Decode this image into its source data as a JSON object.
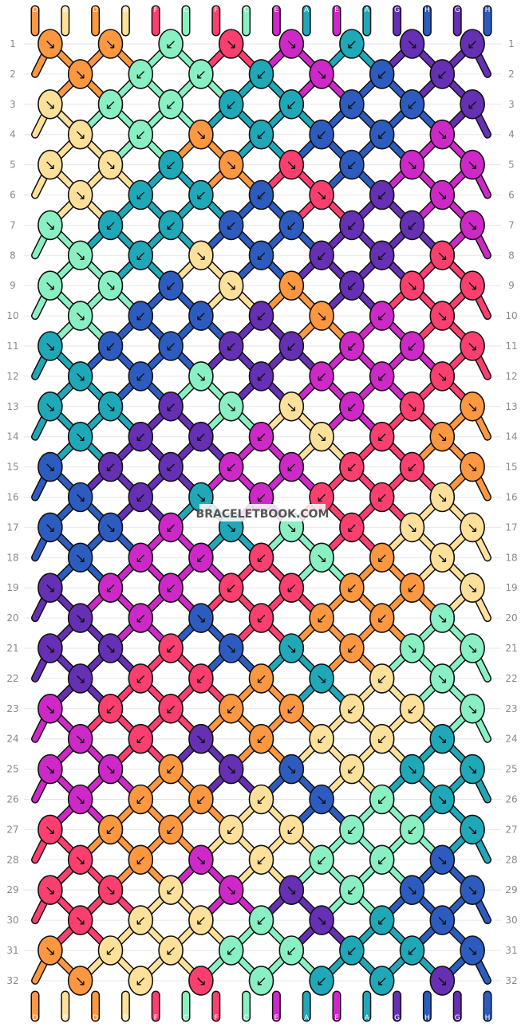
{
  "site": {
    "watermark": "BRACELETBOOK.COM"
  },
  "colors": {
    "D": "#fd9740",
    "B": "#fde099",
    "F": "#fc3f6e",
    "C": "#89f0c3",
    "E": "#cf28c8",
    "A": "#1fa8b8",
    "G": "#6530b3",
    "H": "#2d5cc0"
  },
  "pattern": {
    "rows": 32,
    "strands": [
      "D",
      "B",
      "D",
      "B",
      "F",
      "C",
      "F",
      "C",
      "E",
      "A",
      "E",
      "A",
      "G",
      "H",
      "G",
      "H"
    ]
  },
  "knots": [
    [
      {
        "c": "D",
        "d": "↘"
      },
      {
        "c": "D",
        "d": "↘"
      },
      {
        "c": "C",
        "d": "↙"
      },
      {
        "c": "F",
        "d": "↘"
      },
      {
        "c": "E",
        "d": "↘"
      },
      {
        "c": "A",
        "d": "↙"
      },
      {
        "c": "G",
        "d": "↘"
      },
      {
        "c": "G",
        "d": "↙"
      }
    ],
    [
      {
        "c": "D",
        "d": "↘"
      },
      {
        "c": "C",
        "d": "↙"
      },
      {
        "c": "C",
        "d": "↙"
      },
      {
        "c": "A",
        "d": "↙"
      },
      {
        "c": "E",
        "d": "↘"
      },
      {
        "c": "H",
        "d": "↙"
      },
      {
        "c": "G",
        "d": "↙"
      }
    ],
    [
      {
        "c": "B",
        "d": "↘"
      },
      {
        "c": "C",
        "d": "↙"
      },
      {
        "c": "C",
        "d": "↙"
      },
      {
        "c": "A",
        "d": "↙"
      },
      {
        "c": "A",
        "d": "↙"
      },
      {
        "c": "H",
        "d": "↙"
      },
      {
        "c": "H",
        "d": "↙"
      },
      {
        "c": "G",
        "d": "↙"
      }
    ],
    [
      {
        "c": "B",
        "d": "↘"
      },
      {
        "c": "C",
        "d": "↙"
      },
      {
        "c": "D",
        "d": "↘"
      },
      {
        "c": "A",
        "d": "↙"
      },
      {
        "c": "H",
        "d": "↙"
      },
      {
        "c": "H",
        "d": "↙"
      },
      {
        "c": "E",
        "d": "↘"
      }
    ],
    [
      {
        "c": "B",
        "d": "↘"
      },
      {
        "c": "B",
        "d": "↘"
      },
      {
        "c": "A",
        "d": "↙"
      },
      {
        "c": "D",
        "d": "↘"
      },
      {
        "c": "F",
        "d": "↘"
      },
      {
        "c": "H",
        "d": "↙"
      },
      {
        "c": "E",
        "d": "↘"
      },
      {
        "c": "E",
        "d": "↘"
      }
    ],
    [
      {
        "c": "B",
        "d": "↘"
      },
      {
        "c": "A",
        "d": "↙"
      },
      {
        "c": "A",
        "d": "↙"
      },
      {
        "c": "H",
        "d": "↙"
      },
      {
        "c": "F",
        "d": "↘"
      },
      {
        "c": "G",
        "d": "↙"
      },
      {
        "c": "E",
        "d": "↘"
      }
    ],
    [
      {
        "c": "C",
        "d": "↘"
      },
      {
        "c": "A",
        "d": "↙"
      },
      {
        "c": "A",
        "d": "↙"
      },
      {
        "c": "H",
        "d": "↙"
      },
      {
        "c": "H",
        "d": "↙"
      },
      {
        "c": "G",
        "d": "↙"
      },
      {
        "c": "G",
        "d": "↙"
      },
      {
        "c": "E",
        "d": "↘"
      }
    ],
    [
      {
        "c": "C",
        "d": "↘"
      },
      {
        "c": "A",
        "d": "↙"
      },
      {
        "c": "B",
        "d": "↘"
      },
      {
        "c": "H",
        "d": "↙"
      },
      {
        "c": "G",
        "d": "↙"
      },
      {
        "c": "G",
        "d": "↙"
      },
      {
        "c": "F",
        "d": "↘"
      }
    ],
    [
      {
        "c": "C",
        "d": "↘"
      },
      {
        "c": "C",
        "d": "↘"
      },
      {
        "c": "H",
        "d": "↙"
      },
      {
        "c": "B",
        "d": "↘"
      },
      {
        "c": "D",
        "d": "↘"
      },
      {
        "c": "G",
        "d": "↙"
      },
      {
        "c": "F",
        "d": "↘"
      },
      {
        "c": "F",
        "d": "↘"
      }
    ],
    [
      {
        "c": "C",
        "d": "↘"
      },
      {
        "c": "H",
        "d": "↙"
      },
      {
        "c": "H",
        "d": "↙"
      },
      {
        "c": "G",
        "d": "↙"
      },
      {
        "c": "D",
        "d": "↘"
      },
      {
        "c": "E",
        "d": "↙"
      },
      {
        "c": "F",
        "d": "↘"
      }
    ],
    [
      {
        "c": "A",
        "d": "↘"
      },
      {
        "c": "H",
        "d": "↙"
      },
      {
        "c": "H",
        "d": "↙"
      },
      {
        "c": "G",
        "d": "↙"
      },
      {
        "c": "G",
        "d": "↙"
      },
      {
        "c": "E",
        "d": "↙"
      },
      {
        "c": "E",
        "d": "↙"
      },
      {
        "c": "F",
        "d": "↘"
      }
    ],
    [
      {
        "c": "A",
        "d": "↘"
      },
      {
        "c": "H",
        "d": "↙"
      },
      {
        "c": "C",
        "d": "↘"
      },
      {
        "c": "G",
        "d": "↙"
      },
      {
        "c": "E",
        "d": "↙"
      },
      {
        "c": "E",
        "d": "↙"
      },
      {
        "c": "F",
        "d": "↘"
      }
    ],
    [
      {
        "c": "A",
        "d": "↘"
      },
      {
        "c": "A",
        "d": "↘"
      },
      {
        "c": "G",
        "d": "↙"
      },
      {
        "c": "C",
        "d": "↘"
      },
      {
        "c": "B",
        "d": "↘"
      },
      {
        "c": "E",
        "d": "↙"
      },
      {
        "c": "F",
        "d": "↘"
      },
      {
        "c": "D",
        "d": "↘"
      }
    ],
    [
      {
        "c": "A",
        "d": "↘"
      },
      {
        "c": "G",
        "d": "↙"
      },
      {
        "c": "G",
        "d": "↙"
      },
      {
        "c": "E",
        "d": "↙"
      },
      {
        "c": "B",
        "d": "↘"
      },
      {
        "c": "F",
        "d": "↙"
      },
      {
        "c": "D",
        "d": "↘"
      }
    ],
    [
      {
        "c": "H",
        "d": "↘"
      },
      {
        "c": "G",
        "d": "↙"
      },
      {
        "c": "G",
        "d": "↙"
      },
      {
        "c": "E",
        "d": "↙"
      },
      {
        "c": "E",
        "d": "↙"
      },
      {
        "c": "F",
        "d": "↙"
      },
      {
        "c": "F",
        "d": "↙"
      },
      {
        "c": "D",
        "d": "↘"
      }
    ],
    [
      {
        "c": "H",
        "d": "↘"
      },
      {
        "c": "G",
        "d": "↙"
      },
      {
        "c": "A",
        "d": "↘"
      },
      {
        "c": "E",
        "d": "↙"
      },
      {
        "c": "F",
        "d": "↙"
      },
      {
        "c": "F",
        "d": "↙"
      },
      {
        "c": "B",
        "d": "↘"
      }
    ],
    [
      {
        "c": "H",
        "d": "↘"
      },
      {
        "c": "H",
        "d": "↘"
      },
      {
        "c": "E",
        "d": "↙"
      },
      {
        "c": "A",
        "d": "↘"
      },
      {
        "c": "C",
        "d": "↘"
      },
      {
        "c": "F",
        "d": "↙"
      },
      {
        "c": "B",
        "d": "↘"
      },
      {
        "c": "B",
        "d": "↘"
      }
    ],
    [
      {
        "c": "H",
        "d": "↘"
      },
      {
        "c": "E",
        "d": "↙"
      },
      {
        "c": "E",
        "d": "↙"
      },
      {
        "c": "F",
        "d": "↙"
      },
      {
        "c": "C",
        "d": "↘"
      },
      {
        "c": "D",
        "d": "↙"
      },
      {
        "c": "B",
        "d": "↘"
      }
    ],
    [
      {
        "c": "G",
        "d": "↘"
      },
      {
        "c": "E",
        "d": "↙"
      },
      {
        "c": "E",
        "d": "↙"
      },
      {
        "c": "F",
        "d": "↙"
      },
      {
        "c": "F",
        "d": "↙"
      },
      {
        "c": "D",
        "d": "↙"
      },
      {
        "c": "D",
        "d": "↙"
      },
      {
        "c": "B",
        "d": "↘"
      }
    ],
    [
      {
        "c": "G",
        "d": "↘"
      },
      {
        "c": "E",
        "d": "↙"
      },
      {
        "c": "H",
        "d": "↘"
      },
      {
        "c": "F",
        "d": "↙"
      },
      {
        "c": "D",
        "d": "↙"
      },
      {
        "c": "D",
        "d": "↙"
      },
      {
        "c": "C",
        "d": "↘"
      }
    ],
    [
      {
        "c": "G",
        "d": "↘"
      },
      {
        "c": "G",
        "d": "↘"
      },
      {
        "c": "F",
        "d": "↙"
      },
      {
        "c": "H",
        "d": "↘"
      },
      {
        "c": "A",
        "d": "↘"
      },
      {
        "c": "D",
        "d": "↙"
      },
      {
        "c": "C",
        "d": "↘"
      },
      {
        "c": "C",
        "d": "↘"
      }
    ],
    [
      {
        "c": "G",
        "d": "↘"
      },
      {
        "c": "F",
        "d": "↙"
      },
      {
        "c": "F",
        "d": "↙"
      },
      {
        "c": "D",
        "d": "↙"
      },
      {
        "c": "A",
        "d": "↘"
      },
      {
        "c": "B",
        "d": "↙"
      },
      {
        "c": "C",
        "d": "↘"
      }
    ],
    [
      {
        "c": "E",
        "d": "↘"
      },
      {
        "c": "F",
        "d": "↙"
      },
      {
        "c": "F",
        "d": "↙"
      },
      {
        "c": "D",
        "d": "↙"
      },
      {
        "c": "D",
        "d": "↙"
      },
      {
        "c": "B",
        "d": "↙"
      },
      {
        "c": "B",
        "d": "↙"
      },
      {
        "c": "C",
        "d": "↘"
      }
    ],
    [
      {
        "c": "E",
        "d": "↘"
      },
      {
        "c": "F",
        "d": "↙"
      },
      {
        "c": "G",
        "d": "↘"
      },
      {
        "c": "D",
        "d": "↙"
      },
      {
        "c": "B",
        "d": "↙"
      },
      {
        "c": "B",
        "d": "↙"
      },
      {
        "c": "A",
        "d": "↘"
      }
    ],
    [
      {
        "c": "E",
        "d": "↘"
      },
      {
        "c": "E",
        "d": "↘"
      },
      {
        "c": "D",
        "d": "↙"
      },
      {
        "c": "G",
        "d": "↘"
      },
      {
        "c": "H",
        "d": "↘"
      },
      {
        "c": "B",
        "d": "↙"
      },
      {
        "c": "A",
        "d": "↘"
      },
      {
        "c": "A",
        "d": "↘"
      }
    ],
    [
      {
        "c": "E",
        "d": "↘"
      },
      {
        "c": "D",
        "d": "↙"
      },
      {
        "c": "D",
        "d": "↙"
      },
      {
        "c": "B",
        "d": "↙"
      },
      {
        "c": "H",
        "d": "↘"
      },
      {
        "c": "C",
        "d": "↙"
      },
      {
        "c": "A",
        "d": "↘"
      }
    ],
    [
      {
        "c": "F",
        "d": "↘"
      },
      {
        "c": "D",
        "d": "↙"
      },
      {
        "c": "D",
        "d": "↙"
      },
      {
        "c": "B",
        "d": "↙"
      },
      {
        "c": "B",
        "d": "↙"
      },
      {
        "c": "C",
        "d": "↙"
      },
      {
        "c": "C",
        "d": "↙"
      },
      {
        "c": "A",
        "d": "↘"
      }
    ],
    [
      {
        "c": "F",
        "d": "↘"
      },
      {
        "c": "D",
        "d": "↙"
      },
      {
        "c": "E",
        "d": "↘"
      },
      {
        "c": "B",
        "d": "↙"
      },
      {
        "c": "C",
        "d": "↙"
      },
      {
        "c": "C",
        "d": "↙"
      },
      {
        "c": "H",
        "d": "↘"
      }
    ],
    [
      {
        "c": "F",
        "d": "↘"
      },
      {
        "c": "F",
        "d": "↘"
      },
      {
        "c": "B",
        "d": "↙"
      },
      {
        "c": "E",
        "d": "↘"
      },
      {
        "c": "G",
        "d": "↘"
      },
      {
        "c": "C",
        "d": "↙"
      },
      {
        "c": "H",
        "d": "↘"
      },
      {
        "c": "H",
        "d": "↘"
      }
    ],
    [
      {
        "c": "F",
        "d": "↘"
      },
      {
        "c": "B",
        "d": "↙"
      },
      {
        "c": "B",
        "d": "↙"
      },
      {
        "c": "C",
        "d": "↙"
      },
      {
        "c": "G",
        "d": "↘"
      },
      {
        "c": "A",
        "d": "↙"
      },
      {
        "c": "H",
        "d": "↘"
      }
    ],
    [
      {
        "c": "D",
        "d": "↘"
      },
      {
        "c": "B",
        "d": "↙"
      },
      {
        "c": "B",
        "d": "↙"
      },
      {
        "c": "C",
        "d": "↙"
      },
      {
        "c": "C",
        "d": "↙"
      },
      {
        "c": "A",
        "d": "↙"
      },
      {
        "c": "A",
        "d": "↙"
      },
      {
        "c": "H",
        "d": "↘"
      }
    ],
    [
      {
        "c": "D",
        "d": "↘"
      },
      {
        "c": "B",
        "d": "↙"
      },
      {
        "c": "F",
        "d": "↘"
      },
      {
        "c": "C",
        "d": "↙"
      },
      {
        "c": "A",
        "d": "↙"
      },
      {
        "c": "A",
        "d": "↙"
      },
      {
        "c": "G",
        "d": "↘"
      }
    ]
  ]
}
